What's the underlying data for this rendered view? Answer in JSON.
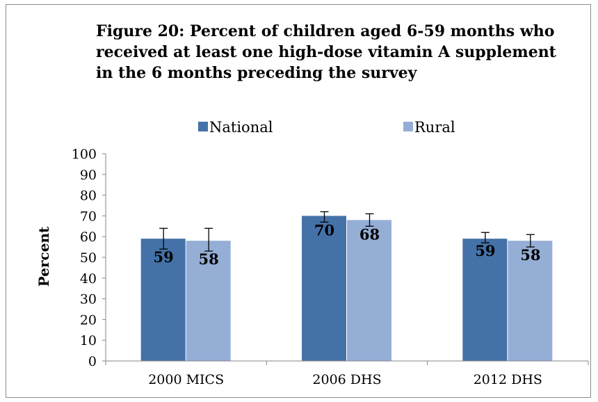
{
  "chart_data": {
    "type": "bar",
    "title": "Figure 20: Percent of children aged 6-59 months who received at least one high-dose vitamin A supplement in the 6 months preceding the survey",
    "title_lines": [
      "Figure 20: Percent of children aged 6-59 months who",
      "received at least one high-dose vitamin A supplement",
      "in the 6 months preceding the survey"
    ],
    "categories": [
      "2000 MICS",
      "2006 DHS",
      "2012 DHS"
    ],
    "series": [
      {
        "name": "National",
        "color": "#4472a8",
        "values": [
          59,
          70,
          59
        ],
        "labels": [
          "59",
          "70",
          "59"
        ],
        "error_low": [
          54,
          67,
          57
        ],
        "error_high": [
          64,
          72,
          62
        ]
      },
      {
        "name": "Rural",
        "color": "#95aed6",
        "values": [
          58,
          68,
          58
        ],
        "labels": [
          "58",
          "68",
          "58"
        ],
        "error_low": [
          53,
          65,
          55
        ],
        "error_high": [
          64,
          71,
          61
        ]
      }
    ],
    "xlabel": "",
    "ylabel": "Percent",
    "ylim": [
      0,
      100
    ],
    "yticks": [
      "0",
      "10",
      "20",
      "30",
      "40",
      "50",
      "60",
      "70",
      "80",
      "90",
      "100"
    ],
    "grid": false,
    "legend_position": "top"
  }
}
